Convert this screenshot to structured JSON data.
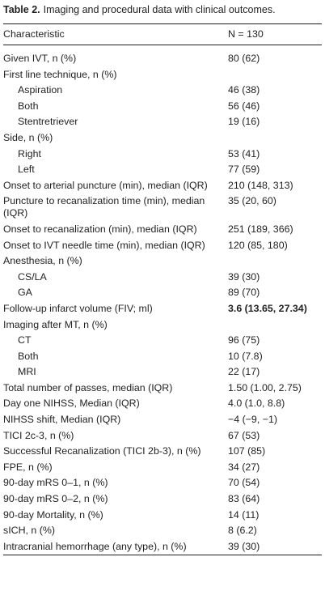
{
  "title": {
    "label": "Table 2.",
    "text": "Imaging and procedural data with clinical outcomes."
  },
  "table": {
    "header": [
      "Characteristic",
      "N = 130"
    ],
    "rows": [
      [
        "Given IVT, n (%)",
        "80 (62)"
      ],
      [
        "First line technique, n (%)"
      ],
      [
        "Aspiration",
        "46 (38)"
      ],
      [
        "Both",
        "56 (46)"
      ],
      [
        "Stentretriever",
        "19 (16)"
      ],
      [
        "Side, n (%)"
      ],
      [
        "Right",
        "53 (41)"
      ],
      [
        "Left",
        "77 (59)"
      ],
      [
        "Onset to arterial puncture (min), median (IQR)",
        "210 (148, 313)"
      ],
      [
        "Puncture to recanalization time (min), median (IQR)",
        "35 (20, 60)"
      ],
      [
        "Onset to recanalization (min), median (IQR)",
        "251 (189, 366)"
      ],
      [
        "Onset to IVT needle time (min), median (IQR)",
        "120 (85, 180)"
      ],
      [
        "Anesthesia, n (%)"
      ],
      [
        "CS/LA",
        "39 (30)"
      ],
      [
        "GA",
        "89 (70)"
      ],
      [
        "Follow-up infarct volume (FIV; ml)",
        "3.6 (13.65, 27.34)"
      ],
      [
        "Imaging after MT, n (%)"
      ],
      [
        "CT",
        "96 (75)"
      ],
      [
        "Both",
        "10 (7.8)"
      ],
      [
        "MRI",
        "22 (17)"
      ],
      [
        "Total number of passes, median (IQR)",
        "1.50 (1.00, 2.75)"
      ],
      [
        "Day one NIHSS, Median (IQR)",
        "4.0 (1.0, 8.8)"
      ],
      [
        "NIHSS shift, Median (IQR)",
        "−4 (−9, −1)"
      ],
      [
        "TICI 2c-3, n (%)",
        "67 (53)"
      ],
      [
        "Successful Recanalization (TICI 2b-3), n (%)",
        "107 (85)"
      ],
      [
        "FPE, n (%)",
        "34 (27)"
      ],
      [
        "90-day mRS 0–1, n (%)",
        "70 (54)"
      ],
      [
        "90-day mRS 0–2, n (%)",
        "83 (64)"
      ],
      [
        "90-day Mortality, n (%)",
        "14 (11)"
      ],
      [
        "sICH, n (%)",
        "8 (6.2)"
      ],
      [
        "Intracranial hemorrhage (any type), n (%)",
        "39 (30)"
      ]
    ]
  }
}
